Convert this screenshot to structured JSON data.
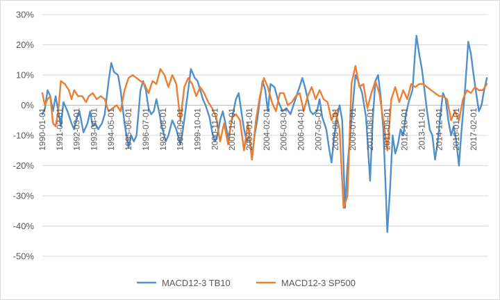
{
  "chart_data": {
    "type": "line",
    "title": "",
    "xlabel": "",
    "ylabel": "",
    "ylim": [
      -0.5,
      0.3
    ],
    "y_ticks": [
      "30%",
      "20%",
      "10%",
      "0%",
      "-10%",
      "-20%",
      "-30%",
      "-40%",
      "-50%"
    ],
    "x_tick_labels": [
      "1990-01-01",
      "1991-02-01",
      "1992-03-01",
      "1993-04-01",
      "1994-05-01",
      "1995-06-01",
      "1996-07-01",
      "1997-08-01",
      "1998-09-01",
      "1999-10-01",
      "2000-11-01",
      "2001-12-01",
      "2003-01-01",
      "2004-02-01",
      "2005-03-01",
      "2006-04-01",
      "2007-05-01",
      "2008-06-01",
      "2009-07-01",
      "2010-08-01",
      "2011-09-01",
      "2012-10-01",
      "2013-11-01",
      "2014-12-01",
      "2016-01-01",
      "2017-02-01"
    ],
    "x_start": "1990-01-01",
    "x_end": "2018-01-01",
    "grid": "horizontal",
    "legend_position": "bottom",
    "series": [
      {
        "name": "MACD12-3 TB10",
        "color": "#4f8fcc",
        "points": [
          [
            "1990-01-01",
            -0.03
          ],
          [
            "1990-03-01",
            -0.01
          ],
          [
            "1990-05-01",
            0.05
          ],
          [
            "1990-07-01",
            0.03
          ],
          [
            "1990-09-01",
            -0.02
          ],
          [
            "1990-11-01",
            0.03
          ],
          [
            "1991-01-01",
            -0.02
          ],
          [
            "1991-03-01",
            -0.07
          ],
          [
            "1991-05-01",
            0.01
          ],
          [
            "1991-08-01",
            -0.02
          ],
          [
            "1991-11-01",
            -0.06
          ],
          [
            "1992-01-01",
            -0.08
          ],
          [
            "1992-03-01",
            -0.04
          ],
          [
            "1992-05-01",
            -0.02
          ],
          [
            "1992-08-01",
            -0.09
          ],
          [
            "1992-11-01",
            -0.06
          ],
          [
            "1993-01-01",
            -0.02
          ],
          [
            "1993-03-01",
            -0.07
          ],
          [
            "1993-05-01",
            -0.06
          ],
          [
            "1993-07-01",
            -0.08
          ],
          [
            "1993-10-01",
            -0.06
          ],
          [
            "1993-12-01",
            -0.03
          ],
          [
            "1994-03-01",
            0.08
          ],
          [
            "1994-05-01",
            0.14
          ],
          [
            "1994-07-01",
            0.11
          ],
          [
            "1994-10-01",
            0.1
          ],
          [
            "1994-12-01",
            0.05
          ],
          [
            "1995-03-01",
            -0.06
          ],
          [
            "1995-06-01",
            -0.14
          ],
          [
            "1995-08-01",
            -0.1
          ],
          [
            "1995-10-01",
            -0.12
          ],
          [
            "1995-12-01",
            -0.1
          ],
          [
            "1996-03-01",
            0.05
          ],
          [
            "1996-05-01",
            0.08
          ],
          [
            "1996-07-01",
            0.05
          ],
          [
            "1996-09-01",
            -0.01
          ],
          [
            "1996-11-01",
            -0.03
          ],
          [
            "1997-01-01",
            -0.02
          ],
          [
            "1997-03-01",
            0.02
          ],
          [
            "1997-05-01",
            -0.02
          ],
          [
            "1997-07-01",
            -0.07
          ],
          [
            "1997-10-01",
            -0.12
          ],
          [
            "1997-12-01",
            -0.1
          ],
          [
            "1998-03-01",
            -0.05
          ],
          [
            "1998-06-01",
            -0.08
          ],
          [
            "1998-09-01",
            -0.13
          ],
          [
            "1998-11-01",
            -0.08
          ],
          [
            "1999-02-01",
            0.02
          ],
          [
            "1999-05-01",
            0.12
          ],
          [
            "1999-08-01",
            0.09
          ],
          [
            "1999-10-01",
            0.08
          ],
          [
            "1999-12-01",
            0.05
          ],
          [
            "2000-02-01",
            0.02
          ],
          [
            "2000-04-01",
            0.0
          ],
          [
            "2000-07-01",
            -0.04
          ],
          [
            "2000-09-01",
            -0.09
          ],
          [
            "2000-11-01",
            -0.12
          ],
          [
            "2001-01-01",
            -0.1
          ],
          [
            "2001-03-01",
            -0.05
          ],
          [
            "2001-05-01",
            -0.02
          ],
          [
            "2001-07-01",
            -0.06
          ],
          [
            "2001-09-01",
            -0.11
          ],
          [
            "2001-11-01",
            -0.07
          ],
          [
            "2002-01-01",
            -0.02
          ],
          [
            "2002-03-01",
            0.02
          ],
          [
            "2002-05-01",
            0.04
          ],
          [
            "2002-07-01",
            -0.02
          ],
          [
            "2002-09-01",
            -0.08
          ],
          [
            "2002-11-01",
            -0.12
          ],
          [
            "2003-01-01",
            -0.1
          ],
          [
            "2003-03-01",
            -0.18
          ],
          [
            "2003-05-01",
            -0.1
          ],
          [
            "2003-07-01",
            -0.05
          ],
          [
            "2003-09-01",
            0.02
          ],
          [
            "2003-11-01",
            0.08
          ],
          [
            "2004-01-01",
            0.05
          ],
          [
            "2004-03-01",
            -0.02
          ],
          [
            "2004-05-01",
            0.07
          ],
          [
            "2004-08-01",
            0.06
          ],
          [
            "2004-11-01",
            0.01
          ],
          [
            "2005-02-01",
            -0.02
          ],
          [
            "2005-05-01",
            -0.01
          ],
          [
            "2005-08-01",
            -0.03
          ],
          [
            "2005-11-01",
            0.01
          ],
          [
            "2006-02-01",
            0.05
          ],
          [
            "2006-05-01",
            0.09
          ],
          [
            "2006-07-01",
            0.06
          ],
          [
            "2006-09-01",
            0.02
          ],
          [
            "2006-11-01",
            -0.02
          ],
          [
            "2007-01-01",
            -0.03
          ],
          [
            "2007-04-01",
            -0.02
          ],
          [
            "2007-06-01",
            0.02
          ],
          [
            "2007-08-01",
            -0.04
          ],
          [
            "2007-11-01",
            -0.08
          ],
          [
            "2008-01-01",
            -0.14
          ],
          [
            "2008-03-01",
            -0.19
          ],
          [
            "2008-05-01",
            -0.1
          ],
          [
            "2008-07-01",
            -0.04
          ],
          [
            "2008-09-01",
            0.0
          ],
          [
            "2008-11-01",
            -0.05
          ],
          [
            "2009-01-01",
            -0.34
          ],
          [
            "2009-03-01",
            -0.2
          ],
          [
            "2009-05-01",
            -0.1
          ],
          [
            "2009-07-01",
            0.0
          ],
          [
            "2009-09-01",
            0.1
          ],
          [
            "2009-11-01",
            0.08
          ],
          [
            "2010-02-01",
            0.04
          ],
          [
            "2010-05-01",
            -0.04
          ],
          [
            "2010-08-01",
            -0.25
          ],
          [
            "2010-10-01",
            -0.05
          ],
          [
            "2010-12-01",
            0.08
          ],
          [
            "2011-02-01",
            0.1
          ],
          [
            "2011-04-01",
            0.03
          ],
          [
            "2011-06-01",
            -0.08
          ],
          [
            "2011-08-01",
            -0.3
          ],
          [
            "2011-09-01",
            -0.42
          ],
          [
            "2011-11-01",
            -0.28
          ],
          [
            "2012-01-01",
            -0.1
          ],
          [
            "2012-03-01",
            -0.16
          ],
          [
            "2012-05-01",
            -0.13
          ],
          [
            "2012-07-01",
            -0.08
          ],
          [
            "2012-09-01",
            -0.1
          ],
          [
            "2012-11-01",
            -0.03
          ],
          [
            "2013-01-01",
            0.01
          ],
          [
            "2013-04-01",
            0.05
          ],
          [
            "2013-06-01",
            0.18
          ],
          [
            "2013-07-01",
            0.23
          ],
          [
            "2013-09-01",
            0.17
          ],
          [
            "2013-11-01",
            0.12
          ],
          [
            "2014-01-01",
            0.05
          ],
          [
            "2014-03-01",
            -0.02
          ],
          [
            "2014-05-01",
            -0.08
          ],
          [
            "2014-07-01",
            -0.1
          ],
          [
            "2014-09-01",
            -0.18
          ],
          [
            "2014-11-01",
            -0.12
          ],
          [
            "2015-01-01",
            -0.03
          ],
          [
            "2015-03-01",
            0.04
          ],
          [
            "2015-05-01",
            0.02
          ],
          [
            "2015-07-01",
            -0.05
          ],
          [
            "2015-09-01",
            -0.1
          ],
          [
            "2015-11-01",
            -0.07
          ],
          [
            "2016-01-01",
            -0.12
          ],
          [
            "2016-03-01",
            -0.2
          ],
          [
            "2016-05-01",
            -0.08
          ],
          [
            "2016-07-01",
            0.02
          ],
          [
            "2016-08-01",
            0.08
          ],
          [
            "2016-10-01",
            0.21
          ],
          [
            "2016-12-01",
            0.17
          ],
          [
            "2017-02-01",
            0.1
          ],
          [
            "2017-04-01",
            0.04
          ],
          [
            "2017-06-01",
            -0.02
          ],
          [
            "2017-08-01",
            0.0
          ],
          [
            "2017-10-01",
            0.05
          ],
          [
            "2017-12-01",
            0.09
          ]
        ]
      },
      {
        "name": "MACD12-3 SP500",
        "color": "#ed7d31",
        "points": [
          [
            "1990-01-01",
            0.04
          ],
          [
            "1990-03-01",
            0.0
          ],
          [
            "1990-05-01",
            0.02
          ],
          [
            "1990-07-01",
            0.03
          ],
          [
            "1990-09-01",
            -0.06
          ],
          [
            "1990-11-01",
            -0.07
          ],
          [
            "1991-01-01",
            -0.02
          ],
          [
            "1991-03-01",
            0.08
          ],
          [
            "1991-06-01",
            0.07
          ],
          [
            "1991-09-01",
            0.05
          ],
          [
            "1991-11-01",
            0.02
          ],
          [
            "1992-01-01",
            0.05
          ],
          [
            "1992-04-01",
            0.03
          ],
          [
            "1992-07-01",
            0.03
          ],
          [
            "1992-10-01",
            0.01
          ],
          [
            "1992-12-01",
            0.03
          ],
          [
            "1993-03-01",
            0.04
          ],
          [
            "1993-06-01",
            0.02
          ],
          [
            "1993-09-01",
            0.03
          ],
          [
            "1993-12-01",
            0.02
          ],
          [
            "1994-03-01",
            -0.02
          ],
          [
            "1994-06-01",
            -0.01
          ],
          [
            "1994-09-01",
            0.0
          ],
          [
            "1994-12-01",
            -0.02
          ],
          [
            "1995-03-01",
            0.05
          ],
          [
            "1995-06-01",
            0.09
          ],
          [
            "1995-09-01",
            0.1
          ],
          [
            "1995-12-01",
            0.09
          ],
          [
            "1996-03-01",
            0.08
          ],
          [
            "1996-06-01",
            0.07
          ],
          [
            "1996-09-01",
            0.04
          ],
          [
            "1996-12-01",
            0.08
          ],
          [
            "1997-03-01",
            0.07
          ],
          [
            "1997-06-01",
            0.12
          ],
          [
            "1997-09-01",
            0.1
          ],
          [
            "1997-12-01",
            0.06
          ],
          [
            "1998-03-01",
            0.1
          ],
          [
            "1998-06-01",
            0.07
          ],
          [
            "1998-09-01",
            -0.05
          ],
          [
            "1998-12-01",
            0.06
          ],
          [
            "1999-03-01",
            0.09
          ],
          [
            "1999-06-01",
            0.07
          ],
          [
            "1999-09-01",
            0.03
          ],
          [
            "1999-12-01",
            0.06
          ],
          [
            "2000-03-01",
            0.04
          ],
          [
            "2000-06-01",
            0.01
          ],
          [
            "2000-09-01",
            -0.01
          ],
          [
            "2000-12-01",
            -0.04
          ],
          [
            "2001-03-01",
            -0.12
          ],
          [
            "2001-06-01",
            -0.06
          ],
          [
            "2001-09-01",
            -0.13
          ],
          [
            "2001-12-01",
            -0.04
          ],
          [
            "2002-03-01",
            -0.03
          ],
          [
            "2002-06-01",
            -0.05
          ],
          [
            "2002-09-01",
            -0.15
          ],
          [
            "2002-12-01",
            -0.06
          ],
          [
            "2003-03-01",
            -0.18
          ],
          [
            "2003-06-01",
            -0.05
          ],
          [
            "2003-09-01",
            0.03
          ],
          [
            "2003-12-01",
            0.09
          ],
          [
            "2004-03-01",
            0.06
          ],
          [
            "2004-06-01",
            0.01
          ],
          [
            "2004-09-01",
            -0.02
          ],
          [
            "2004-12-01",
            0.04
          ],
          [
            "2005-03-01",
            0.04
          ],
          [
            "2005-06-01",
            0.0
          ],
          [
            "2005-09-01",
            0.01
          ],
          [
            "2005-12-01",
            0.03
          ],
          [
            "2006-03-01",
            0.04
          ],
          [
            "2006-06-01",
            -0.02
          ],
          [
            "2006-09-01",
            0.03
          ],
          [
            "2006-12-01",
            0.06
          ],
          [
            "2007-03-01",
            0.02
          ],
          [
            "2007-06-01",
            0.05
          ],
          [
            "2007-09-01",
            0.02
          ],
          [
            "2007-12-01",
            0.01
          ],
          [
            "2008-03-01",
            -0.05
          ],
          [
            "2008-06-01",
            -0.02
          ],
          [
            "2008-09-01",
            -0.08
          ],
          [
            "2008-12-01",
            -0.34
          ],
          [
            "2009-03-01",
            -0.3
          ],
          [
            "2009-06-01",
            0.07
          ],
          [
            "2009-09-01",
            0.13
          ],
          [
            "2009-12-01",
            0.06
          ],
          [
            "2010-03-01",
            0.07
          ],
          [
            "2010-06-01",
            -0.01
          ],
          [
            "2010-09-01",
            0.04
          ],
          [
            "2010-12-01",
            0.08
          ],
          [
            "2011-03-01",
            0.04
          ],
          [
            "2011-06-01",
            -0.05
          ],
          [
            "2011-09-01",
            -0.15
          ],
          [
            "2011-12-01",
            0.02
          ],
          [
            "2012-03-01",
            0.06
          ],
          [
            "2012-06-01",
            0.01
          ],
          [
            "2012-09-01",
            0.05
          ],
          [
            "2012-12-01",
            0.02
          ],
          [
            "2013-03-01",
            0.07
          ],
          [
            "2013-06-01",
            0.06
          ],
          [
            "2013-09-01",
            0.07
          ],
          [
            "2013-12-01",
            0.07
          ],
          [
            "2014-03-01",
            0.06
          ],
          [
            "2014-06-01",
            0.05
          ],
          [
            "2014-09-01",
            0.04
          ],
          [
            "2014-12-01",
            0.03
          ],
          [
            "2015-03-01",
            0.03
          ],
          [
            "2015-06-01",
            0.02
          ],
          [
            "2015-09-01",
            -0.05
          ],
          [
            "2015-12-01",
            -0.02
          ],
          [
            "2016-03-01",
            -0.05
          ],
          [
            "2016-06-01",
            0.02
          ],
          [
            "2016-09-01",
            0.05
          ],
          [
            "2016-12-01",
            0.04
          ],
          [
            "2017-03-01",
            0.06
          ],
          [
            "2017-06-01",
            0.05
          ],
          [
            "2017-09-01",
            0.05
          ],
          [
            "2017-12-01",
            0.07
          ]
        ]
      }
    ]
  }
}
